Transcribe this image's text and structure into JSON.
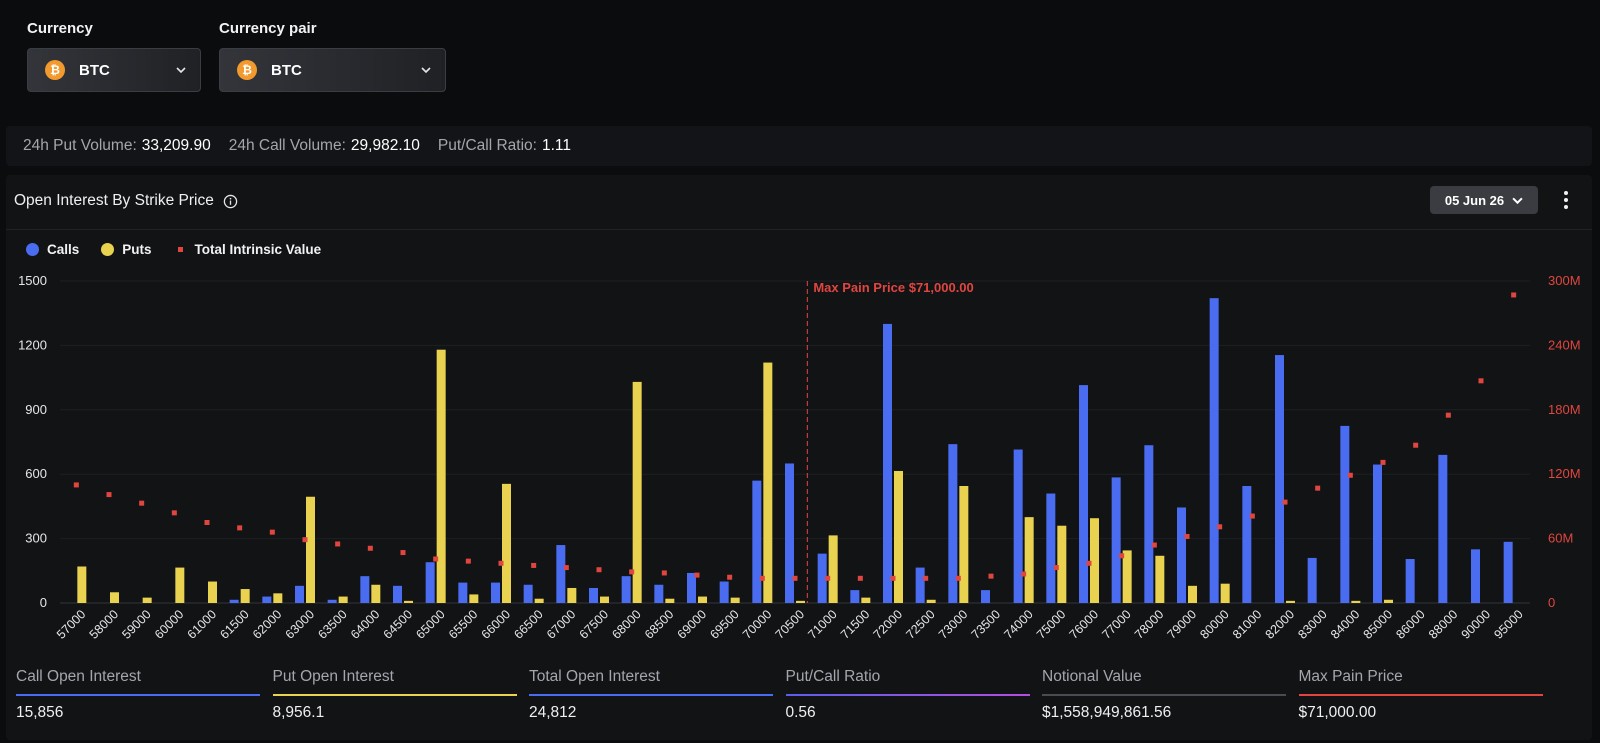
{
  "selectors": {
    "currency": {
      "label": "Currency",
      "value": "BTC"
    },
    "pair": {
      "label": "Currency pair",
      "value": "BTC"
    },
    "coin_glyph": "₿",
    "coin_icon": "bitcoin-icon"
  },
  "stats": {
    "put_volume_label": "24h Put Volume:",
    "put_volume": "33,209.90",
    "call_volume_label": "24h Call Volume:",
    "call_volume": "29,982.10",
    "ratio_label": "Put/Call Ratio:",
    "ratio": "1.11"
  },
  "panel": {
    "title": "Open Interest By Strike Price",
    "date": "05 Jun 26"
  },
  "legend": {
    "calls": "Calls",
    "puts": "Puts",
    "tiv": "Total Intrinsic Value"
  },
  "colors": {
    "calls": "#4a6cf0",
    "puts": "#e8d24f",
    "tiv": "#e0463f",
    "ratio": "#9b4de0",
    "notional": "#4a4c52",
    "maxpain": "#e0463f"
  },
  "chart_data": {
    "type": "bar",
    "title": "Open Interest By Strike Price",
    "categories": [
      "57000",
      "58000",
      "59000",
      "60000",
      "61000",
      "61500",
      "62000",
      "63000",
      "63500",
      "64000",
      "64500",
      "65000",
      "65500",
      "66000",
      "66500",
      "67000",
      "67500",
      "68000",
      "68500",
      "69000",
      "69500",
      "70000",
      "70500",
      "71000",
      "71500",
      "72000",
      "72500",
      "73000",
      "73500",
      "74000",
      "75000",
      "76000",
      "77000",
      "78000",
      "79000",
      "80000",
      "81000",
      "82000",
      "83000",
      "84000",
      "85000",
      "86000",
      "88000",
      "90000",
      "95000"
    ],
    "series": [
      {
        "name": "Calls",
        "values": [
          0,
          0,
          0,
          0,
          0,
          15,
          30,
          80,
          15,
          125,
          80,
          190,
          95,
          95,
          85,
          270,
          70,
          125,
          85,
          140,
          100,
          570,
          650,
          230,
          60,
          1300,
          165,
          740,
          60,
          715,
          510,
          1015,
          585,
          735,
          445,
          1420,
          545,
          1155,
          210,
          825,
          645,
          205,
          690,
          250,
          285
        ]
      },
      {
        "name": "Puts",
        "values": [
          170,
          50,
          25,
          165,
          100,
          65,
          45,
          495,
          30,
          85,
          10,
          1180,
          40,
          555,
          20,
          70,
          30,
          1030,
          20,
          30,
          25,
          1120,
          10,
          315,
          25,
          615,
          15,
          545,
          0,
          400,
          360,
          395,
          245,
          220,
          80,
          90,
          0,
          10,
          0,
          10,
          15,
          0,
          0,
          0,
          0
        ]
      },
      {
        "name": "Total Intrinsic Value",
        "axis": "right",
        "values": [
          110,
          101,
          93,
          84,
          75,
          70,
          66,
          59,
          55,
          51,
          47,
          41,
          39,
          37,
          35,
          33,
          31,
          29,
          28,
          26,
          24,
          23,
          23,
          23,
          23,
          23,
          23,
          23,
          25,
          27,
          33,
          37,
          44,
          54,
          62,
          71,
          81,
          94,
          107,
          119,
          131,
          147,
          175,
          207,
          287
        ]
      }
    ],
    "ylim": [
      0,
      1500
    ],
    "yticks": [
      "0",
      "300",
      "600",
      "900",
      "1200",
      "1500"
    ],
    "y2lim": [
      0,
      300
    ],
    "y2ticks": [
      "0",
      "60M",
      "120M",
      "180M",
      "240M",
      "300M"
    ],
    "annotation": {
      "x": "71000",
      "label": "Max Pain Price $71,000.00"
    }
  },
  "footer": [
    {
      "label": "Call Open Interest",
      "value": "15,856",
      "color": "#4a6cf0"
    },
    {
      "label": "Put Open Interest",
      "value": "8,956.1",
      "color": "#e8d24f"
    },
    {
      "label": "Total Open Interest",
      "value": "24,812",
      "color": "#4a6cf0"
    },
    {
      "label": "Put/Call Ratio",
      "value": "0.56",
      "color": "#9b4de0"
    },
    {
      "label": "Notional Value",
      "value": "$1,558,949,861.56",
      "color": "#4a4c52"
    },
    {
      "label": "Max Pain Price",
      "value": "$71,000.00",
      "color": "#e0463f"
    }
  ]
}
